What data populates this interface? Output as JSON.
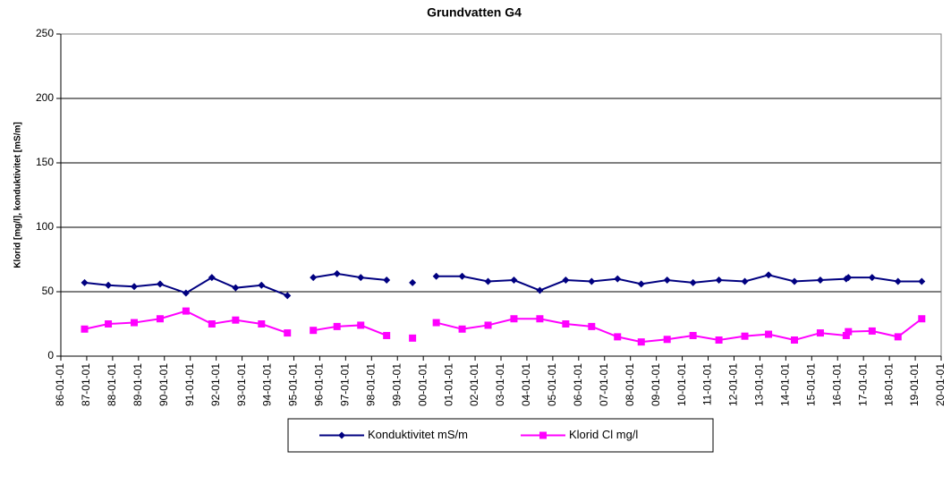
{
  "chart_data": {
    "type": "line",
    "title": "Grundvatten G4",
    "y_label": "Klorid [mg/l], konduktivitet [mS/m]",
    "x": [
      "86-12-01",
      "87-11-01",
      "88-11-01",
      "89-11-01",
      "90-11-01",
      "91-11-01",
      "92-10-01",
      "93-10-01",
      "94-10-01",
      null,
      "95-10-01",
      "96-09-01",
      "97-08-01",
      "98-08-01",
      null,
      "99-08-01",
      null,
      "00-07-01",
      "01-07-01",
      "02-07-01",
      "03-07-01",
      "04-07-01",
      "05-07-01",
      "06-07-01",
      "07-07-01",
      "08-06-01",
      "09-06-01",
      "10-06-01",
      "11-06-01",
      "12-06-01",
      "13-05-01",
      "14-05-01",
      "15-05-01",
      "16-05-01",
      "16-06-01",
      "17-05-01",
      "18-05-01",
      "19-04-01"
    ],
    "series": [
      {
        "name": "Konduktivitet mS/m",
        "color": "#000080",
        "marker": "diamond",
        "values": [
          57,
          55,
          54,
          56,
          49,
          61,
          53,
          55,
          47,
          null,
          61,
          64,
          61,
          59,
          null,
          57,
          null,
          62,
          62,
          58,
          59,
          51,
          59,
          58,
          60,
          56,
          59,
          57,
          59,
          58,
          63,
          58,
          59,
          60,
          61,
          61,
          58,
          58
        ]
      },
      {
        "name": "Klorid Cl mg/l",
        "color": "#ff00ff",
        "marker": "square",
        "values": [
          21,
          25,
          26,
          29,
          35,
          25,
          28,
          25,
          18,
          null,
          20,
          23,
          24,
          16,
          null,
          14,
          null,
          26,
          21,
          24,
          29,
          29,
          25,
          23,
          15,
          11,
          13,
          16,
          12.5,
          15.5,
          17,
          12.5,
          18,
          16,
          19,
          19.5,
          15,
          29
        ]
      }
    ],
    "xlim": [
      "86-01-01",
      "20-01-01"
    ],
    "xticks": [
      "86-01-01",
      "87-01-01",
      "88-01-01",
      "89-01-01",
      "90-01-01",
      "91-01-01",
      "92-01-01",
      "93-01-01",
      "94-01-01",
      "95-01-01",
      "96-01-01",
      "97-01-01",
      "98-01-01",
      "99-01-01",
      "00-01-01",
      "01-01-01",
      "02-01-01",
      "03-01-01",
      "04-01-01",
      "05-01-01",
      "06-01-01",
      "07-01-01",
      "08-01-01",
      "09-01-01",
      "10-01-01",
      "11-01-01",
      "12-01-01",
      "13-01-01",
      "14-01-01",
      "15-01-01",
      "16-01-01",
      "17-01-01",
      "18-01-01",
      "19-01-01",
      "20-01-01"
    ],
    "ylim": [
      0,
      250
    ],
    "yticks": [
      0,
      50,
      100,
      150,
      200,
      250
    ],
    "grid": true,
    "legend": "bottom"
  }
}
